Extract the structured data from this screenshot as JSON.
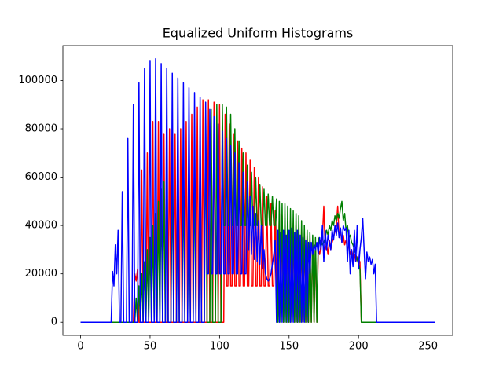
{
  "chart_data": {
    "type": "line",
    "title": "Equalized Uniform Histograms",
    "x": [
      0,
      1,
      2,
      3,
      4,
      5,
      6,
      7,
      8,
      9,
      10,
      11,
      12,
      13,
      14,
      15,
      16,
      17,
      18,
      19,
      20,
      21,
      22,
      23,
      24,
      25,
      26,
      27,
      28,
      29,
      30,
      31,
      32,
      33,
      34,
      35,
      36,
      37,
      38,
      39,
      40,
      41,
      42,
      43,
      44,
      45,
      46,
      47,
      48,
      49,
      50,
      51,
      52,
      53,
      54,
      55,
      56,
      57,
      58,
      59,
      60,
      61,
      62,
      63,
      64,
      65,
      66,
      67,
      68,
      69,
      70,
      71,
      72,
      73,
      74,
      75,
      76,
      77,
      78,
      79,
      80,
      81,
      82,
      83,
      84,
      85,
      86,
      87,
      88,
      89,
      90,
      91,
      92,
      93,
      94,
      95,
      96,
      97,
      98,
      99,
      100,
      101,
      102,
      103,
      104,
      105,
      106,
      107,
      108,
      109,
      110,
      111,
      112,
      113,
      114,
      115,
      116,
      117,
      118,
      119,
      120,
      121,
      122,
      123,
      124,
      125,
      126,
      127,
      128,
      129,
      130,
      131,
      132,
      133,
      134,
      135,
      136,
      137,
      138,
      139,
      140,
      141,
      142,
      143,
      144,
      145,
      146,
      147,
      148,
      149,
      150,
      151,
      152,
      153,
      154,
      155,
      156,
      157,
      158,
      159,
      160,
      161,
      162,
      163,
      164,
      165,
      166,
      167,
      168,
      169,
      170,
      171,
      172,
      173,
      174,
      175,
      176,
      177,
      178,
      179,
      180,
      181,
      182,
      183,
      184,
      185,
      186,
      187,
      188,
      189,
      190,
      191,
      192,
      193,
      194,
      195,
      196,
      197,
      198,
      199,
      200,
      201,
      202,
      203,
      204,
      205,
      206,
      207,
      208,
      209,
      210,
      211,
      212,
      213,
      214,
      215,
      216,
      217,
      218,
      219,
      220,
      221,
      222,
      223,
      224,
      225,
      226,
      227,
      228,
      229,
      230,
      231,
      232,
      233,
      234,
      235,
      236,
      237,
      238,
      239,
      240,
      241,
      242,
      243,
      244,
      245,
      246,
      247,
      248,
      249,
      250,
      251,
      252,
      253,
      254,
      255
    ],
    "series": [
      {
        "color": "#ff0000",
        "values": [
          0,
          0,
          0,
          0,
          0,
          0,
          0,
          0,
          0,
          0,
          0,
          0,
          0,
          0,
          0,
          0,
          0,
          0,
          0,
          0,
          0,
          0,
          0,
          0,
          0,
          0,
          0,
          0,
          0,
          0,
          0,
          0,
          0,
          0,
          0,
          0,
          0,
          0,
          0,
          20000,
          17000,
          22000,
          0,
          0,
          63000,
          0,
          0,
          0,
          70000,
          0,
          0,
          0,
          83000,
          0,
          0,
          0,
          83000,
          0,
          0,
          0,
          78000,
          0,
          0,
          0,
          80000,
          0,
          0,
          0,
          78000,
          0,
          0,
          0,
          80000,
          0,
          0,
          0,
          83000,
          0,
          0,
          0,
          86000,
          0,
          0,
          0,
          89000,
          0,
          0,
          0,
          92000,
          0,
          0,
          0,
          92000,
          0,
          0,
          0,
          91000,
          0,
          0,
          0,
          90000,
          0,
          0,
          0,
          86000,
          15000,
          15000,
          82000,
          15000,
          15000,
          78000,
          15000,
          15000,
          75000,
          15000,
          15000,
          72000,
          15000,
          15000,
          70000,
          15000,
          15000,
          67000,
          15000,
          15000,
          64000,
          15000,
          15000,
          60000,
          15000,
          15000,
          56000,
          15000,
          15000,
          52000,
          15000,
          15000,
          49000,
          15000,
          15000,
          46000,
          15000,
          15000,
          45000,
          0,
          44000,
          0,
          43000,
          0,
          42000,
          0,
          42000,
          0,
          41000,
          0,
          40000,
          0,
          39000,
          0,
          38000,
          0,
          37000,
          0,
          36000,
          0,
          35000,
          0,
          34000,
          0,
          33000,
          0,
          30000,
          28000,
          32000,
          35000,
          48000,
          30000,
          32000,
          28000,
          34000,
          30000,
          33000,
          35000,
          38000,
          40000,
          48000,
          35000,
          38000,
          33000,
          36000,
          32000,
          34000,
          30000,
          32000,
          28000,
          30000,
          27000,
          28000,
          25000,
          27000,
          26000,
          25000,
          0,
          0,
          0,
          0,
          0,
          0,
          0,
          0,
          0,
          0,
          0,
          0,
          0,
          0,
          0,
          0,
          0,
          0,
          0,
          0,
          0,
          0,
          0,
          0,
          0,
          0,
          0,
          0,
          0,
          0,
          0,
          0,
          0,
          0,
          0,
          0,
          0,
          0,
          0,
          0,
          0,
          0,
          0,
          0,
          0,
          0,
          0,
          0,
          0,
          0,
          0,
          0,
          0,
          0
        ]
      },
      {
        "color": "#008000",
        "values": [
          0,
          0,
          0,
          0,
          0,
          0,
          0,
          0,
          0,
          0,
          0,
          0,
          0,
          0,
          0,
          0,
          0,
          0,
          0,
          0,
          0,
          0,
          0,
          0,
          0,
          0,
          0,
          0,
          0,
          0,
          0,
          0,
          0,
          0,
          0,
          0,
          0,
          0,
          0,
          0,
          10000,
          0,
          15000,
          0,
          20000,
          0,
          25000,
          0,
          30000,
          0,
          35000,
          0,
          40000,
          0,
          45000,
          0,
          50000,
          0,
          55000,
          0,
          58000,
          0,
          60000,
          0,
          0,
          0,
          61000,
          0,
          0,
          0,
          61000,
          0,
          0,
          0,
          62000,
          0,
          0,
          0,
          63000,
          0,
          0,
          0,
          65000,
          0,
          0,
          0,
          75000,
          0,
          0,
          0,
          85000,
          0,
          0,
          0,
          88000,
          0,
          0,
          0,
          90000,
          0,
          0,
          0,
          90000,
          40000,
          40000,
          89000,
          40000,
          40000,
          86000,
          40000,
          40000,
          80000,
          40000,
          40000,
          75000,
          40000,
          40000,
          70000,
          40000,
          40000,
          65000,
          40000,
          40000,
          62000,
          40000,
          40000,
          60000,
          40000,
          40000,
          57000,
          40000,
          40000,
          55000,
          40000,
          40000,
          53000,
          40000,
          40000,
          52000,
          40000,
          40000,
          51000,
          0,
          50000,
          0,
          49000,
          0,
          49000,
          0,
          48000,
          0,
          47000,
          0,
          46000,
          0,
          45000,
          0,
          44000,
          0,
          42000,
          0,
          40000,
          0,
          38000,
          0,
          37000,
          0,
          36000,
          0,
          35000,
          0,
          35000,
          33000,
          34000,
          32000,
          33000,
          35000,
          38000,
          36000,
          40000,
          38000,
          42000,
          40000,
          44000,
          42000,
          45000,
          43000,
          47000,
          50000,
          42000,
          45000,
          38000,
          40000,
          35000,
          36000,
          33000,
          32000,
          30000,
          28000,
          26000,
          24000,
          22000,
          0,
          0,
          0,
          0,
          0,
          0,
          0,
          0,
          0,
          0,
          0,
          0,
          0,
          0,
          0,
          0,
          0,
          0,
          0,
          0,
          0,
          0,
          0,
          0,
          0,
          0,
          0,
          0,
          0,
          0,
          0,
          0,
          0,
          0,
          0,
          0,
          0,
          0,
          0,
          0,
          0,
          0,
          0,
          0,
          0,
          0,
          0,
          0,
          0,
          0,
          0,
          0,
          0,
          0
        ]
      },
      {
        "color": "#0000ff",
        "values": [
          0,
          0,
          0,
          0,
          0,
          0,
          0,
          0,
          0,
          0,
          0,
          0,
          0,
          0,
          0,
          0,
          0,
          0,
          0,
          0,
          0,
          0,
          0,
          21000,
          15000,
          32000,
          20000,
          38000,
          0,
          0,
          54000,
          0,
          0,
          0,
          76000,
          0,
          0,
          0,
          90000,
          0,
          0,
          0,
          99000,
          0,
          0,
          0,
          105000,
          0,
          0,
          0,
          108000,
          0,
          0,
          0,
          109000,
          0,
          0,
          0,
          107000,
          0,
          0,
          0,
          105000,
          0,
          0,
          0,
          103000,
          0,
          0,
          0,
          101000,
          0,
          0,
          0,
          99000,
          0,
          0,
          0,
          97000,
          0,
          0,
          0,
          95000,
          0,
          0,
          0,
          93000,
          0,
          0,
          0,
          91000,
          20000,
          20000,
          88000,
          20000,
          20000,
          85000,
          20000,
          20000,
          82000,
          20000,
          20000,
          79000,
          20000,
          20000,
          76000,
          20000,
          20000,
          73000,
          20000,
          20000,
          70000,
          20000,
          20000,
          66000,
          20000,
          20000,
          62000,
          20000,
          20000,
          58000,
          30000,
          52000,
          28000,
          48000,
          26000,
          45000,
          25000,
          42000,
          24000,
          40000,
          22000,
          30000,
          20000,
          18000,
          17000,
          18000,
          20000,
          24000,
          28000,
          34000,
          0,
          38000,
          0,
          37000,
          0,
          38000,
          0,
          36000,
          0,
          38000,
          0,
          39000,
          0,
          37000,
          0,
          38000,
          0,
          36000,
          0,
          35000,
          0,
          34000,
          0,
          33000,
          20000,
          33000,
          28000,
          32000,
          30000,
          33000,
          28000,
          35000,
          30000,
          40000,
          25000,
          38000,
          30000,
          36000,
          33000,
          30000,
          38000,
          34000,
          40000,
          36000,
          41000,
          35000,
          39000,
          33000,
          40000,
          38000,
          39000,
          25000,
          38000,
          20000,
          30000,
          23000,
          38000,
          25000,
          40000,
          22000,
          30000,
          35000,
          43000,
          30000,
          18000,
          29000,
          25000,
          27000,
          24000,
          26000,
          20000,
          24000,
          0,
          0,
          0,
          0,
          0,
          0,
          0,
          0,
          0,
          0,
          0,
          0,
          0,
          0,
          0,
          0,
          0,
          0,
          0,
          0,
          0,
          0,
          0,
          0,
          0,
          0,
          0,
          0,
          0,
          0,
          0,
          0,
          0,
          0,
          0,
          0,
          0,
          0,
          0,
          0,
          0,
          0,
          0
        ]
      }
    ],
    "xlim": [
      -12.75,
      267.75
    ],
    "xticks": [
      0,
      50,
      100,
      150,
      200,
      250
    ],
    "ylim": [
      -5450,
      114450
    ],
    "yticks": [
      0,
      20000,
      40000,
      60000,
      80000,
      100000
    ]
  }
}
